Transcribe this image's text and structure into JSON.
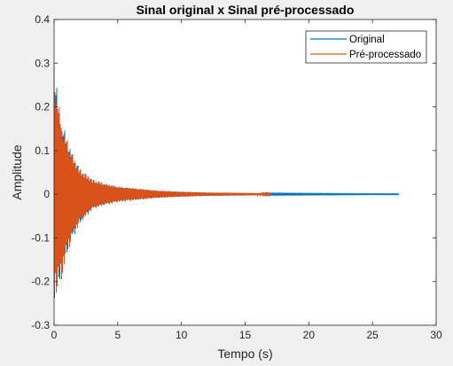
{
  "figure": {
    "background": "#f0f0f0"
  },
  "chart_data": {
    "type": "line",
    "title": "Sinal original x Sinal pré-processado",
    "xlabel": "Tempo (s)",
    "ylabel": "Amplitude",
    "xlim": [
      0,
      30
    ],
    "ylim": [
      -0.3,
      0.4
    ],
    "xticks": [
      0,
      5,
      10,
      15,
      20,
      25,
      30
    ],
    "yticks": [
      -0.3,
      -0.2,
      -0.1,
      0,
      0.1,
      0.2,
      0.3,
      0.4
    ],
    "grid": false,
    "legend_position": "top-right",
    "series": [
      {
        "name": "Original",
        "color": "#0072bd",
        "x_end": 27.1,
        "envelope": [
          {
            "x": 0.0,
            "upper": 0.31,
            "lower": -0.25
          },
          {
            "x": 0.3,
            "upper": 0.22,
            "lower": -0.22
          },
          {
            "x": 0.6,
            "upper": 0.17,
            "lower": -0.2
          },
          {
            "x": 1.0,
            "upper": 0.13,
            "lower": -0.14
          },
          {
            "x": 1.5,
            "upper": 0.09,
            "lower": -0.1
          },
          {
            "x": 2.0,
            "upper": 0.06,
            "lower": -0.07
          },
          {
            "x": 3.0,
            "upper": 0.035,
            "lower": -0.035
          },
          {
            "x": 4.0,
            "upper": 0.025,
            "lower": -0.025
          },
          {
            "x": 5.0,
            "upper": 0.018,
            "lower": -0.018
          },
          {
            "x": 6.0,
            "upper": 0.015,
            "lower": -0.015
          },
          {
            "x": 8.0,
            "upper": 0.009,
            "lower": -0.009
          },
          {
            "x": 10.0,
            "upper": 0.006,
            "lower": -0.006
          },
          {
            "x": 12.0,
            "upper": 0.004,
            "lower": -0.004
          },
          {
            "x": 15.0,
            "upper": 0.003,
            "lower": -0.003
          },
          {
            "x": 17.0,
            "upper": 0.002,
            "lower": -0.002
          },
          {
            "x": 20.0,
            "upper": 0.0015,
            "lower": -0.0015
          },
          {
            "x": 25.0,
            "upper": 0.001,
            "lower": -0.001
          },
          {
            "x": 27.1,
            "upper": 0.001,
            "lower": -0.001
          }
        ]
      },
      {
        "name": "Pré-processado",
        "color": "#d95319",
        "x_end": 17.0,
        "envelope": [
          {
            "x": 0.0,
            "upper": 0.31,
            "lower": -0.25
          },
          {
            "x": 0.3,
            "upper": 0.22,
            "lower": -0.22
          },
          {
            "x": 0.6,
            "upper": 0.17,
            "lower": -0.2
          },
          {
            "x": 1.0,
            "upper": 0.13,
            "lower": -0.14
          },
          {
            "x": 1.5,
            "upper": 0.09,
            "lower": -0.1
          },
          {
            "x": 2.0,
            "upper": 0.06,
            "lower": -0.07
          },
          {
            "x": 3.0,
            "upper": 0.035,
            "lower": -0.035
          },
          {
            "x": 4.0,
            "upper": 0.025,
            "lower": -0.025
          },
          {
            "x": 5.0,
            "upper": 0.018,
            "lower": -0.018
          },
          {
            "x": 6.0,
            "upper": 0.015,
            "lower": -0.015
          },
          {
            "x": 8.0,
            "upper": 0.009,
            "lower": -0.009
          },
          {
            "x": 10.0,
            "upper": 0.006,
            "lower": -0.006
          },
          {
            "x": 12.0,
            "upper": 0.004,
            "lower": -0.004
          },
          {
            "x": 15.0,
            "upper": 0.003,
            "lower": -0.003
          },
          {
            "x": 17.0,
            "upper": 0.002,
            "lower": -0.002
          }
        ]
      }
    ]
  }
}
